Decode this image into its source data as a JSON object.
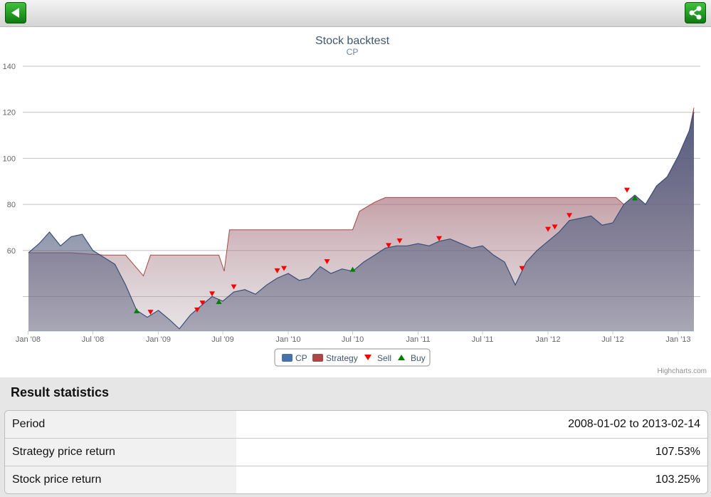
{
  "toolbar": {
    "back_icon": "back-arrow-icon",
    "share_icon": "share-icon"
  },
  "chart_data": {
    "type": "area",
    "title": "Stock backtest",
    "subtitle": "CP",
    "xlabel": "",
    "ylabel": "",
    "x_tick_labels": [
      "Jan '08",
      "Jul '08",
      "Jan '09",
      "Jul '09",
      "Jan '10",
      "Jul '10",
      "Jan '11",
      "Jul '11",
      "Jan '12",
      "Jul '12",
      "Jan '13"
    ],
    "y_tick_labels": [
      "60",
      "80",
      "100",
      "120",
      "140"
    ],
    "ylim": [
      25,
      140
    ],
    "grid": true,
    "legend_position": "bottom",
    "credit": "Highcharts.com",
    "series": [
      {
        "name": "CP",
        "color": "#4572a7",
        "points": [
          [
            "2008-01-02",
            59
          ],
          [
            "2008-02-01",
            63
          ],
          [
            "2008-03-01",
            68
          ],
          [
            "2008-04-01",
            62
          ],
          [
            "2008-05-01",
            66
          ],
          [
            "2008-06-01",
            67
          ],
          [
            "2008-07-01",
            60
          ],
          [
            "2008-08-01",
            57
          ],
          [
            "2008-09-01",
            54
          ],
          [
            "2008-10-01",
            45
          ],
          [
            "2008-11-01",
            34
          ],
          [
            "2008-12-01",
            31
          ],
          [
            "2009-01-01",
            34
          ],
          [
            "2009-02-01",
            30
          ],
          [
            "2009-03-01",
            26
          ],
          [
            "2009-04-01",
            32
          ],
          [
            "2009-05-01",
            36
          ],
          [
            "2009-06-01",
            40
          ],
          [
            "2009-07-01",
            38
          ],
          [
            "2009-08-01",
            42
          ],
          [
            "2009-09-01",
            43
          ],
          [
            "2009-10-01",
            41
          ],
          [
            "2009-11-01",
            45
          ],
          [
            "2009-12-01",
            48
          ],
          [
            "2010-01-01",
            50
          ],
          [
            "2010-02-01",
            47
          ],
          [
            "2010-03-01",
            48
          ],
          [
            "2010-04-01",
            53
          ],
          [
            "2010-05-01",
            50
          ],
          [
            "2010-06-01",
            52
          ],
          [
            "2010-07-01",
            51
          ],
          [
            "2010-08-01",
            55
          ],
          [
            "2010-09-01",
            58
          ],
          [
            "2010-10-01",
            61
          ],
          [
            "2010-11-01",
            62
          ],
          [
            "2010-12-01",
            62
          ],
          [
            "2011-01-01",
            63
          ],
          [
            "2011-02-01",
            62
          ],
          [
            "2011-03-01",
            64
          ],
          [
            "2011-04-01",
            65
          ],
          [
            "2011-05-01",
            63
          ],
          [
            "2011-06-01",
            61
          ],
          [
            "2011-07-01",
            62
          ],
          [
            "2011-08-01",
            58
          ],
          [
            "2011-09-01",
            55
          ],
          [
            "2011-10-01",
            45
          ],
          [
            "2011-11-01",
            55
          ],
          [
            "2011-12-01",
            60
          ],
          [
            "2012-01-01",
            64
          ],
          [
            "2012-02-01",
            68
          ],
          [
            "2012-03-01",
            73
          ],
          [
            "2012-04-01",
            74
          ],
          [
            "2012-05-01",
            75
          ],
          [
            "2012-06-01",
            71
          ],
          [
            "2012-07-01",
            72
          ],
          [
            "2012-08-01",
            80
          ],
          [
            "2012-09-01",
            84
          ],
          [
            "2012-10-01",
            80
          ],
          [
            "2012-11-01",
            88
          ],
          [
            "2012-12-01",
            92
          ],
          [
            "2013-01-01",
            101
          ],
          [
            "2013-02-01",
            112
          ],
          [
            "2013-02-14",
            120
          ]
        ]
      },
      {
        "name": "Strategy",
        "color": "#aa4643",
        "points": [
          [
            "2008-01-02",
            59
          ],
          [
            "2008-05-01",
            59
          ],
          [
            "2008-08-01",
            58
          ],
          [
            "2008-10-01",
            58
          ],
          [
            "2008-11-20",
            49
          ],
          [
            "2008-12-10",
            58
          ],
          [
            "2009-06-20",
            58
          ],
          [
            "2009-07-05",
            51
          ],
          [
            "2009-07-20",
            69
          ],
          [
            "2009-08-01",
            69
          ],
          [
            "2010-07-01",
            69
          ],
          [
            "2010-07-20",
            77
          ],
          [
            "2010-09-01",
            81
          ],
          [
            "2010-10-01",
            83
          ],
          [
            "2012-06-01",
            83
          ],
          [
            "2012-07-10",
            83
          ],
          [
            "2012-08-01",
            80
          ],
          [
            "2012-09-01",
            84
          ],
          [
            "2012-10-01",
            80
          ],
          [
            "2012-11-01",
            88
          ],
          [
            "2012-12-01",
            92
          ],
          [
            "2013-01-01",
            101
          ],
          [
            "2013-02-01",
            112
          ],
          [
            "2013-02-14",
            122
          ]
        ]
      },
      {
        "name": "Sell",
        "color": "#ff0000",
        "points": [
          [
            "2008-12-10",
            33
          ],
          [
            "2009-04-20",
            34
          ],
          [
            "2009-05-05",
            37
          ],
          [
            "2009-06-01",
            41
          ],
          [
            "2009-08-01",
            44
          ],
          [
            "2009-12-01",
            51
          ],
          [
            "2009-12-20",
            52
          ],
          [
            "2010-04-20",
            55
          ],
          [
            "2010-10-10",
            62
          ],
          [
            "2010-11-10",
            64
          ],
          [
            "2011-03-01",
            65
          ],
          [
            "2011-10-20",
            52
          ],
          [
            "2012-01-01",
            69
          ],
          [
            "2012-01-20",
            70
          ],
          [
            "2012-03-01",
            75
          ],
          [
            "2012-08-10",
            86
          ]
        ]
      },
      {
        "name": "Buy",
        "color": "#008000",
        "points": [
          [
            "2008-11-01",
            34
          ],
          [
            "2009-06-20",
            38
          ],
          [
            "2010-07-01",
            52
          ],
          [
            "2012-09-01",
            83
          ]
        ]
      }
    ]
  },
  "legend": {
    "items": [
      {
        "label": "CP",
        "symbol": "square",
        "color": "#4572a7"
      },
      {
        "label": "Strategy",
        "symbol": "square",
        "color": "#aa4643"
      },
      {
        "label": "Sell",
        "symbol": "triangle-down",
        "color": "#ff0000"
      },
      {
        "label": "Buy",
        "symbol": "triangle-up",
        "color": "#008000"
      }
    ]
  },
  "stats": {
    "title": "Result statistics",
    "rows": [
      {
        "label": "Period",
        "value": "2008-01-02 to 2013-02-14"
      },
      {
        "label": "Strategy price return",
        "value": "107.53%"
      },
      {
        "label": "Stock price return",
        "value": "103.25%"
      }
    ]
  }
}
